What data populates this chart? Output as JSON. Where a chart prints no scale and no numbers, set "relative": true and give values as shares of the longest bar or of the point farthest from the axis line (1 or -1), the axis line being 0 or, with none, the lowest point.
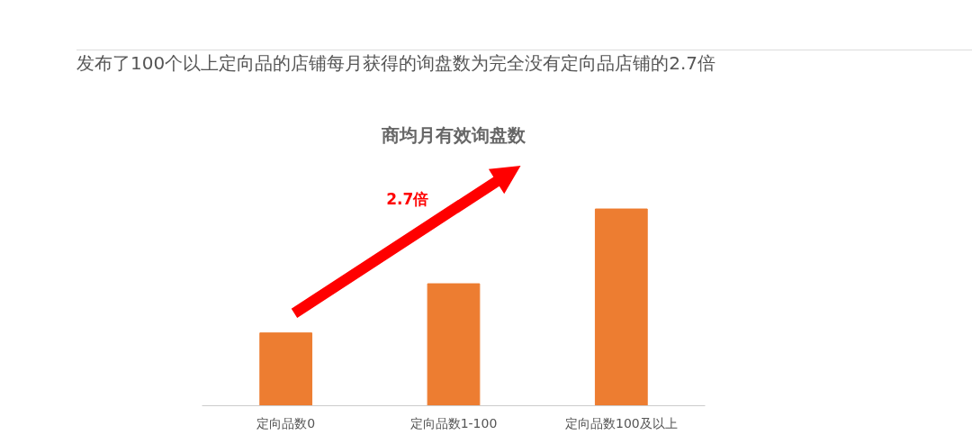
{
  "chart_data": {
    "type": "bar",
    "title": "发布了100个以上定向品的店铺每月获得的询盘数为完全没有定向品店铺的2.7倍",
    "subtitle": "商均月有效询盘数",
    "categories": [
      "定向品数0",
      "定向品数1-100",
      "定向品数100及以上"
    ],
    "values": [
      0.37,
      0.62,
      1
    ],
    "color": "#ed7d31",
    "relative": true,
    "grid": false,
    "annotations": [
      "2.7倍"
    ]
  }
}
